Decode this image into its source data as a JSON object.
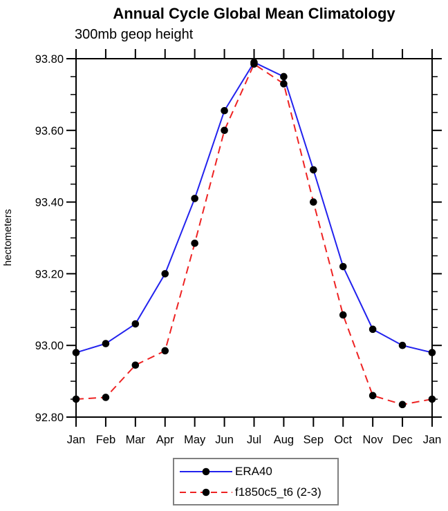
{
  "page": {
    "background": "#ffffff"
  },
  "chart_data": {
    "type": "line",
    "title": "Annual Cycle Global Mean Climatology",
    "subtitle": "300mb geop height",
    "xlabel": "",
    "ylabel": "hectometers",
    "categories": [
      "Jan",
      "Feb",
      "Mar",
      "Apr",
      "May",
      "Jun",
      "Jul",
      "Aug",
      "Sep",
      "Oct",
      "Nov",
      "Dec",
      "Jan"
    ],
    "ylim": [
      92.8,
      93.8
    ],
    "ytick_major_step": 0.2,
    "ytick_minor_step": 0.05,
    "ytick_labels": [
      "92.80",
      "93.00",
      "93.20",
      "93.40",
      "93.60",
      "93.80"
    ],
    "grid": false,
    "legend_position": "bottom-center",
    "series": [
      {
        "name": "ERA40",
        "color": "#2222ee",
        "line_style": "solid",
        "marker": "filled-circle",
        "marker_color": "#000000",
        "values": [
          92.98,
          93.005,
          93.06,
          93.2,
          93.41,
          93.655,
          93.79,
          93.75,
          93.49,
          93.22,
          93.045,
          93.0,
          92.98
        ]
      },
      {
        "name": "f1850c5_t6 (2-3)",
        "color": "#ee2222",
        "line_style": "dashed",
        "marker": "filled-circle",
        "marker_color": "#000000",
        "values": [
          92.85,
          92.855,
          92.945,
          92.985,
          93.285,
          93.6,
          93.785,
          93.73,
          93.4,
          93.085,
          92.86,
          92.835,
          92.85
        ]
      }
    ]
  },
  "colors": {
    "frame": "#000000",
    "text": "#000000",
    "legend_border": "#808080",
    "background": "#ffffff"
  }
}
